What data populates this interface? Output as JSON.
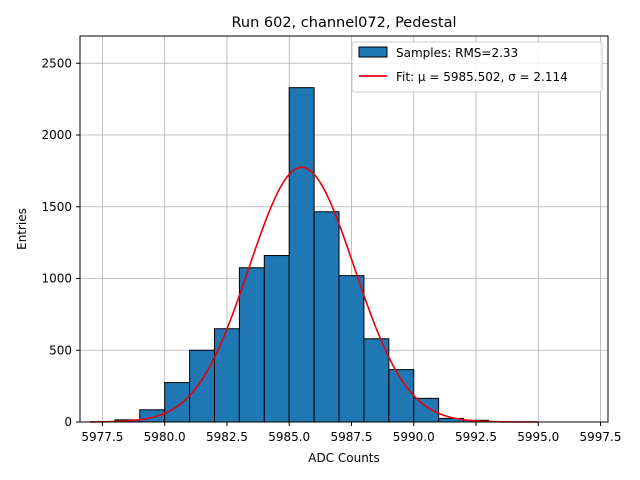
{
  "chart_data": {
    "type": "bar",
    "title": "Run 602, channel072, Pedestal",
    "xlabel": "ADC Counts",
    "ylabel": "Entries",
    "xlim": [
      5976.6,
      5997.8
    ],
    "ylim": [
      0,
      2690
    ],
    "xticks": [
      5977.5,
      5980.0,
      5982.5,
      5985.0,
      5987.5,
      5990.0,
      5992.5,
      5995.0,
      5997.5
    ],
    "xtick_labels": [
      "5977.5",
      "5980.0",
      "5982.5",
      "5985.0",
      "5987.5",
      "5990.0",
      "5992.5",
      "5995.0",
      "5997.5"
    ],
    "yticks": [
      0,
      500,
      1000,
      1500,
      2000,
      2500
    ],
    "ytick_labels": [
      "0",
      "500",
      "1000",
      "1500",
      "2000",
      "2500"
    ],
    "grid": true,
    "legend_position": "top-right",
    "bin_width": 1.0,
    "bins": [
      {
        "left": 5977.0,
        "count": 0
      },
      {
        "left": 5978.0,
        "count": 15
      },
      {
        "left": 5979.0,
        "count": 85
      },
      {
        "left": 5980.0,
        "count": 275
      },
      {
        "left": 5981.0,
        "count": 500
      },
      {
        "left": 5982.0,
        "count": 650
      },
      {
        "left": 5983.0,
        "count": 1075
      },
      {
        "left": 5984.0,
        "count": 1160
      },
      {
        "left": 5985.0,
        "count": 2330
      },
      {
        "left": 5986.0,
        "count": 1465
      },
      {
        "left": 5987.0,
        "count": 1020
      },
      {
        "left": 5988.0,
        "count": 580
      },
      {
        "left": 5989.0,
        "count": 365
      },
      {
        "left": 5990.0,
        "count": 165
      },
      {
        "left": 5991.0,
        "count": 25
      },
      {
        "left": 5992.0,
        "count": 12
      }
    ],
    "series": [
      {
        "name": "Samples: RMS=2.33",
        "kind": "histogram",
        "color": "#1f77b4"
      },
      {
        "name": "Fit: μ = 5985.502, σ = 2.114",
        "kind": "gaussian",
        "color": "#e8000b",
        "mu": 5985.502,
        "sigma": 2.114,
        "amplitude": 1775,
        "x_range": [
          5977.0,
          5995.0
        ]
      }
    ]
  }
}
